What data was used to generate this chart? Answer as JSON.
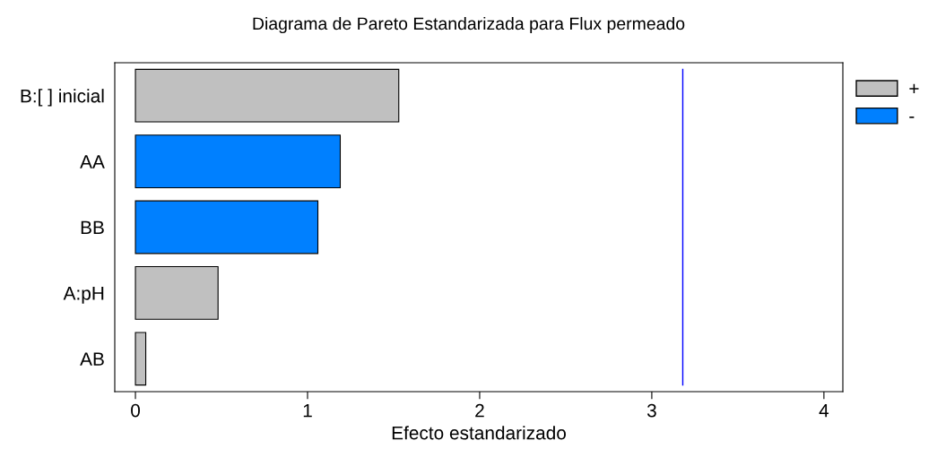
{
  "chart_data": {
    "type": "bar",
    "orientation": "horizontal",
    "title": "Diagrama de Pareto Estandarizada para Flux permeado",
    "xlabel": "Efecto estandarizado",
    "categories": [
      "B:[ ] inicial",
      "AA",
      "BB",
      "A:pH",
      "AB"
    ],
    "series": [
      {
        "name": "+",
        "color": "#c0c0c0",
        "values": [
          1.53,
          null,
          null,
          0.48,
          0.06
        ]
      },
      {
        "name": "-",
        "color": "#0080ff",
        "values": [
          null,
          1.19,
          1.06,
          null,
          null
        ]
      }
    ],
    "xlim": [
      -0.12,
      4.11
    ],
    "xticks": [
      0,
      1,
      2,
      3,
      4
    ],
    "ref_lines": [
      {
        "axis": "x",
        "value": 3.18,
        "color": "#0000ff"
      }
    ],
    "grid": false,
    "legend": "right"
  }
}
